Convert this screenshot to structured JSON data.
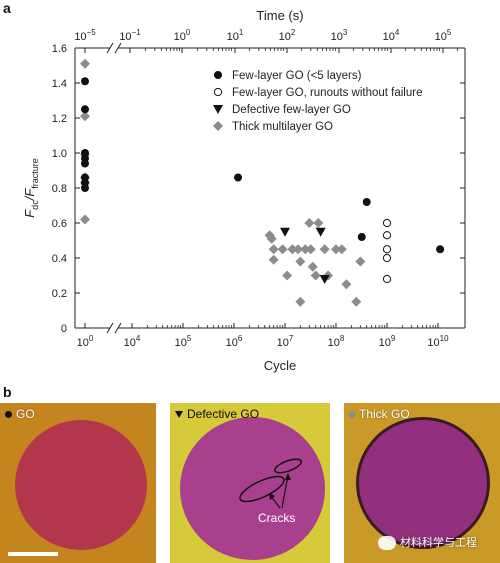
{
  "panels": {
    "a": "a",
    "b": "b"
  },
  "chart_data": {
    "type": "scatter",
    "title": "",
    "xlabel": "Cycle",
    "ylabel_main": "F",
    "ylabel_sub1": "dc",
    "ylabel_mid": "/F",
    "ylabel_sub2": "fracture",
    "top_xlabel": "Time (s)",
    "ylim": [
      0,
      1.6
    ],
    "yticks": [
      "0",
      "0.2",
      "0.4",
      "0.6",
      "0.8",
      "1.0",
      "1.2",
      "1.4",
      "1.6"
    ],
    "xticks_bottom": [
      {
        "base": "10",
        "exp": "0"
      },
      {
        "base": "10",
        "exp": "4"
      },
      {
        "base": "10",
        "exp": "5"
      },
      {
        "base": "10",
        "exp": "6"
      },
      {
        "base": "10",
        "exp": "7"
      },
      {
        "base": "10",
        "exp": "8"
      },
      {
        "base": "10",
        "exp": "9"
      },
      {
        "base": "10",
        "exp": "10"
      }
    ],
    "xticks_top": [
      {
        "base": "10",
        "exp": "−5"
      },
      {
        "base": "10",
        "exp": "−1"
      },
      {
        "base": "10",
        "exp": "0"
      },
      {
        "base": "10",
        "exp": "1"
      },
      {
        "base": "10",
        "exp": "2"
      },
      {
        "base": "10",
        "exp": "3"
      },
      {
        "base": "10",
        "exp": "4"
      },
      {
        "base": "10",
        "exp": "5"
      }
    ],
    "axis_break": true,
    "legend_position": "top-right",
    "series": [
      {
        "name": "Few-layer GO (<5 layers)",
        "marker": "filled-circle",
        "color": "#111111",
        "points": [
          {
            "x": 1,
            "y": 1.41
          },
          {
            "x": 1,
            "y": 1.25
          },
          {
            "x": 1,
            "y": 1.0
          },
          {
            "x": 1,
            "y": 0.97
          },
          {
            "x": 1,
            "y": 0.94
          },
          {
            "x": 1,
            "y": 0.86
          },
          {
            "x": 1,
            "y": 0.83
          },
          {
            "x": 1,
            "y": 0.8
          },
          {
            "x": 1200000.0,
            "y": 0.86
          },
          {
            "x": 320000000.0,
            "y": 0.52
          },
          {
            "x": 400000000.0,
            "y": 0.72
          },
          {
            "x": 11000000000.0,
            "y": 0.45
          }
        ]
      },
      {
        "name": "Few-layer GO, runouts without failure",
        "marker": "open-circle",
        "color": "#111111",
        "points": [
          {
            "x": 1000000000.0,
            "y": 0.6
          },
          {
            "x": 1000000000.0,
            "y": 0.53
          },
          {
            "x": 1000000000.0,
            "y": 0.45
          },
          {
            "x": 1000000000.0,
            "y": 0.4
          },
          {
            "x": 1000000000.0,
            "y": 0.28
          }
        ]
      },
      {
        "name": "Defective few-layer GO",
        "marker": "filled-triangle-down",
        "color": "#111111",
        "points": [
          {
            "x": 10000000.0,
            "y": 0.55
          },
          {
            "x": 50000000.0,
            "y": 0.55
          },
          {
            "x": 60000000.0,
            "y": 0.28
          }
        ]
      },
      {
        "name": "Thick multilayer GO",
        "marker": "filled-diamond",
        "color": "#8c8c8c",
        "points": [
          {
            "x": 1,
            "y": 1.51
          },
          {
            "x": 1,
            "y": 1.21
          },
          {
            "x": 1,
            "y": 0.99
          },
          {
            "x": 1,
            "y": 0.86
          },
          {
            "x": 1,
            "y": 0.83
          },
          {
            "x": 1,
            "y": 0.62
          },
          {
            "x": 5000000.0,
            "y": 0.53
          },
          {
            "x": 5500000.0,
            "y": 0.51
          },
          {
            "x": 6000000.0,
            "y": 0.45
          },
          {
            "x": 6000000.0,
            "y": 0.39
          },
          {
            "x": 9000000.0,
            "y": 0.45
          },
          {
            "x": 11000000.0,
            "y": 0.3
          },
          {
            "x": 14000000.0,
            "y": 0.45
          },
          {
            "x": 18000000.0,
            "y": 0.45
          },
          {
            "x": 20000000.0,
            "y": 0.38
          },
          {
            "x": 20000000.0,
            "y": 0.15
          },
          {
            "x": 25000000.0,
            "y": 0.45
          },
          {
            "x": 30000000.0,
            "y": 0.6
          },
          {
            "x": 32000000.0,
            "y": 0.45
          },
          {
            "x": 35000000.0,
            "y": 0.35
          },
          {
            "x": 40000000.0,
            "y": 0.3
          },
          {
            "x": 45000000.0,
            "y": 0.6
          },
          {
            "x": 60000000.0,
            "y": 0.45
          },
          {
            "x": 70000000.0,
            "y": 0.3
          },
          {
            "x": 100000000.0,
            "y": 0.45
          },
          {
            "x": 130000000.0,
            "y": 0.45
          },
          {
            "x": 160000000.0,
            "y": 0.25
          },
          {
            "x": 250000000.0,
            "y": 0.15
          },
          {
            "x": 300000000.0,
            "y": 0.38
          }
        ]
      }
    ]
  },
  "photos": [
    {
      "label": "GO",
      "marker": "filled-circle",
      "bg": "#c4851f",
      "disc": "#b3364d"
    },
    {
      "label": "Defective GO",
      "marker": "filled-triangle-down",
      "bg": "#d6c93a",
      "disc": "#a8408e",
      "note": "Cracks"
    },
    {
      "label": "Thick GO",
      "marker": "filled-diamond",
      "bg": "#c99a27",
      "disc": "#93307d"
    }
  ],
  "watermark": "材料科学与工程"
}
